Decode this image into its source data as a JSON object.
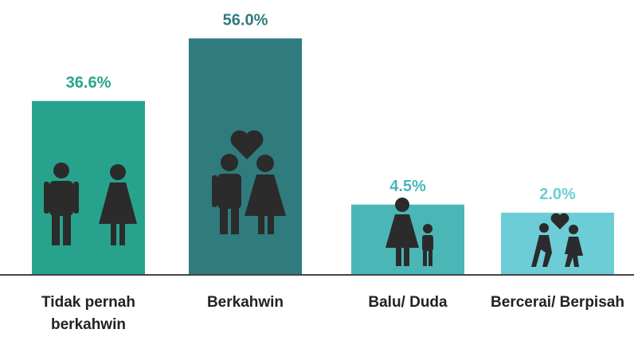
{
  "chart_data": {
    "type": "bar",
    "categories": [
      "Tidak pernah berkahwin",
      "Berkahwin",
      "Balu/ Duda",
      "Bercerai/ Berpisah"
    ],
    "values": [
      36.6,
      56.0,
      4.5,
      2.0
    ],
    "value_labels": [
      "36.6%",
      "56.0%",
      "4.5%",
      "2.0%"
    ],
    "colors": [
      "#27a38d",
      "#2f7b7e",
      "#4bb6b6",
      "#6dcdd6"
    ]
  }
}
